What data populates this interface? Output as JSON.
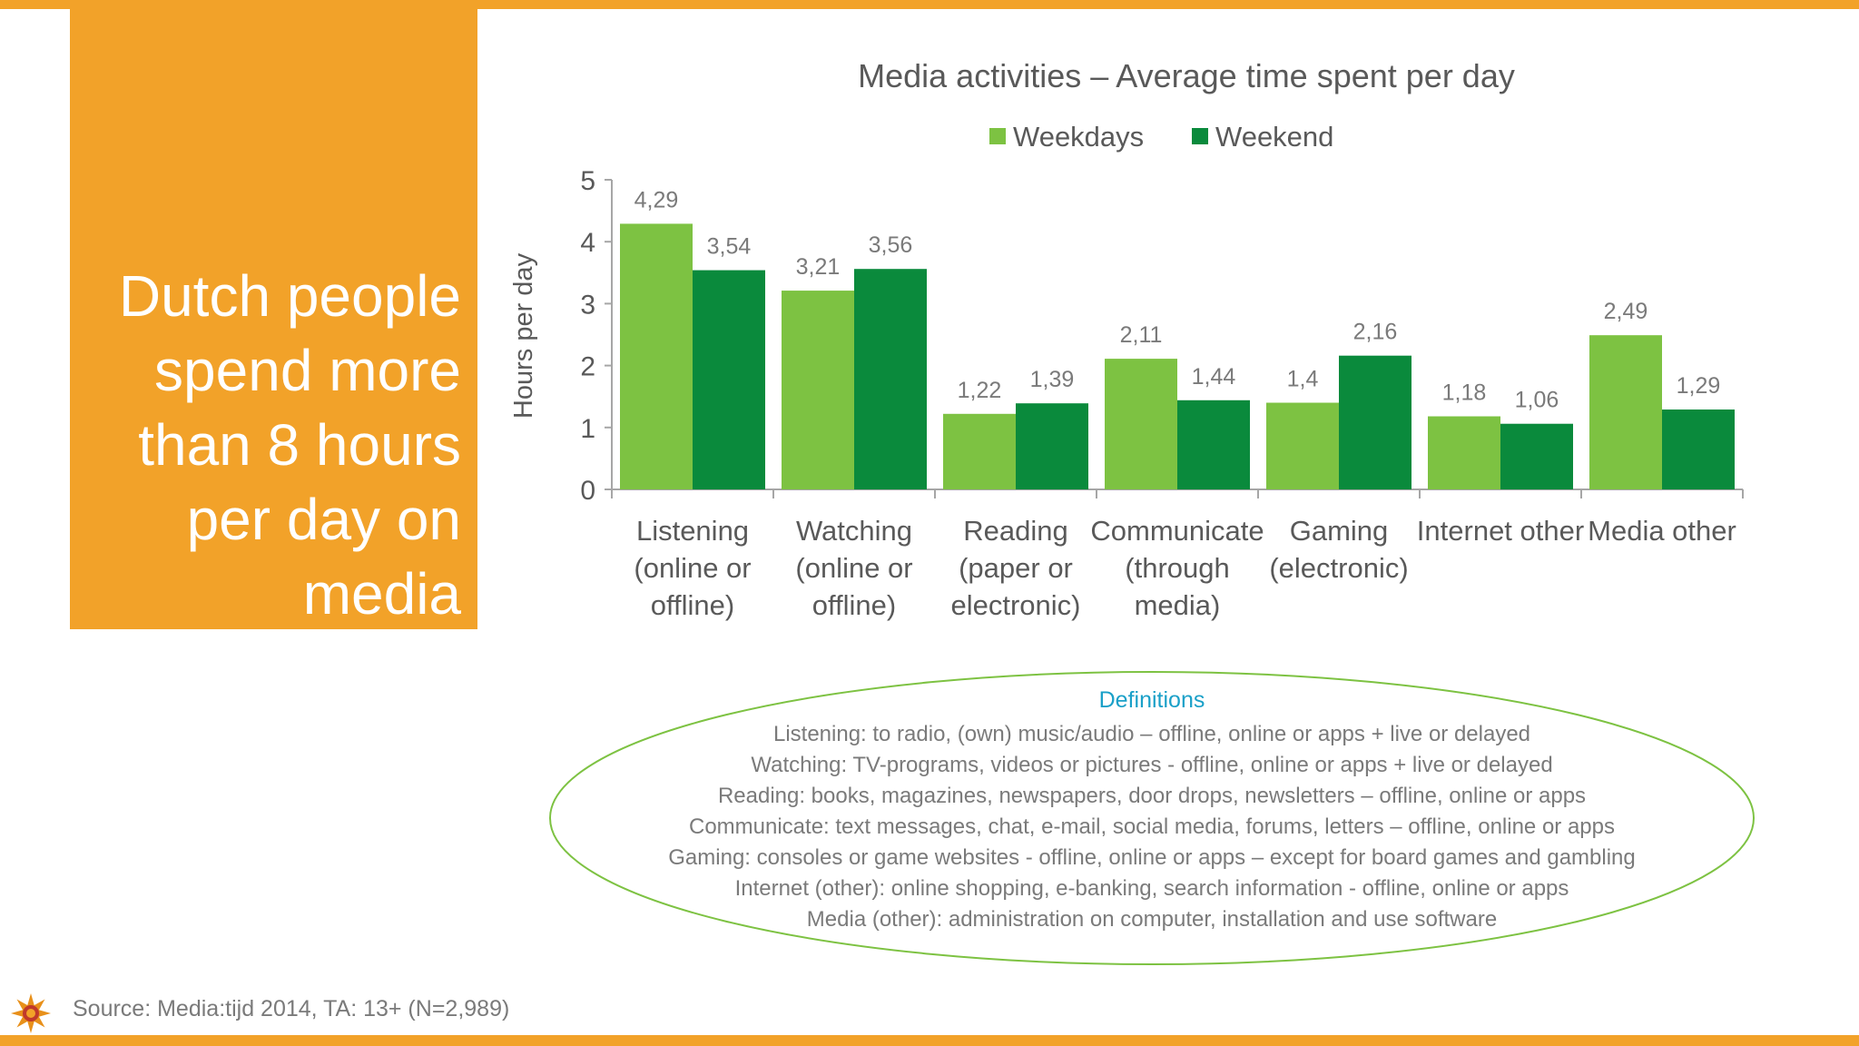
{
  "headline": [
    "Dutch people",
    "spend more",
    "than 8 hours",
    "per day on",
    "media"
  ],
  "chart_data": {
    "type": "bar",
    "title": "Media activities – Average time spent per day",
    "ylabel": "Hours per day",
    "xlabel": "",
    "ylim": [
      0,
      5
    ],
    "yticks": [
      "0",
      "1",
      "2",
      "3",
      "4",
      "5"
    ],
    "legend_position": "top",
    "grid": false,
    "categories": [
      [
        "Listening",
        "(online or",
        "offline)"
      ],
      [
        "Watching",
        "(online or",
        "offline)"
      ],
      [
        "Reading",
        "(paper or",
        "electronic)"
      ],
      [
        "Communicate",
        "(through",
        "media)"
      ],
      [
        "Gaming",
        "(electronic)"
      ],
      [
        "Internet other"
      ],
      [
        "Media other"
      ]
    ],
    "series": [
      {
        "name": "Weekdays",
        "color": "#7dc242",
        "values": [
          4.29,
          3.21,
          1.22,
          2.11,
          1.4,
          1.18,
          2.49
        ],
        "labels": [
          "4,29",
          "3,21",
          "1,22",
          "2,11",
          "1,4",
          "1,18",
          "2,49"
        ]
      },
      {
        "name": "Weekend",
        "color": "#0a8a3c",
        "values": [
          3.54,
          3.56,
          1.39,
          1.44,
          2.16,
          1.06,
          1.29
        ],
        "labels": [
          "3,54",
          "3,56",
          "1,39",
          "1,44",
          "2,16",
          "1,06",
          "1,29"
        ]
      }
    ]
  },
  "definitions": {
    "title": "Definitions",
    "lines": [
      "Listening: to radio, (own) music/audio – offline, online or apps + live or delayed",
      "Watching: TV-programs, videos or pictures - offline, online or apps + live or delayed",
      "Reading: books, magazines, newspapers, door drops, newsletters – offline, online or apps",
      "Communicate: text messages, chat, e-mail, social media, forums, letters – offline, online or apps",
      "Gaming: consoles or game websites - offline, online or apps – except for board games and gambling",
      "Internet (other): online shopping, e-banking, search information  - offline, online or apps",
      "Media (other): administration on computer, installation and use software"
    ]
  },
  "source": "Source: Media:tijd 2014, TA: 13+ (N=2,989)",
  "colors": {
    "accent": "#f2a229",
    "ellipse": "#7dc242",
    "definitions_title": "#1aa0c8",
    "text_gray": "#7a7a7a"
  }
}
